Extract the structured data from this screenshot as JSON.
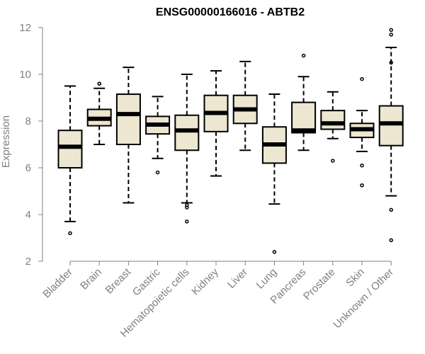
{
  "chart_data": {
    "type": "box",
    "title": "ENSG00000166016 - ABTB2",
    "xlabel": "",
    "ylabel": "Expression",
    "ylim": [
      2,
      12
    ],
    "yticks": [
      2,
      4,
      6,
      8,
      10,
      12
    ],
    "grid": false,
    "legend": "none",
    "colors": {
      "box_fill": "#ede6d0",
      "box_stroke": "#000000",
      "axis": "#808080"
    },
    "categories": [
      "Bladder",
      "Brain",
      "Breast",
      "Gastric",
      "Hematopoietic cells",
      "Kidney",
      "Liver",
      "Lung",
      "Pancreas",
      "Prostate",
      "Skin",
      "Unknown / Other"
    ],
    "boxes": [
      {
        "category": "Bladder",
        "whisker_low": 3.7,
        "q1": 6.0,
        "median": 6.9,
        "q3": 7.6,
        "whisker_high": 9.5,
        "outliers": [
          3.2
        ]
      },
      {
        "category": "Brain",
        "whisker_low": 7.0,
        "q1": 7.8,
        "median": 8.1,
        "q3": 8.5,
        "whisker_high": 9.4,
        "outliers": [
          9.6,
          9.6
        ]
      },
      {
        "category": "Breast",
        "whisker_low": 4.5,
        "q1": 7.0,
        "median": 8.3,
        "q3": 9.15,
        "whisker_high": 10.3,
        "outliers": []
      },
      {
        "category": "Gastric",
        "whisker_low": 6.4,
        "q1": 7.45,
        "median": 7.85,
        "q3": 8.2,
        "whisker_high": 9.05,
        "outliers": [
          5.8
        ]
      },
      {
        "category": "Hematopoietic cells",
        "whisker_low": 4.5,
        "q1": 6.75,
        "median": 7.6,
        "q3": 8.25,
        "whisker_high": 10.0,
        "outliers": [
          4.4,
          4.3,
          3.7
        ]
      },
      {
        "category": "Kidney",
        "whisker_low": 5.65,
        "q1": 7.55,
        "median": 8.35,
        "q3": 9.1,
        "whisker_high": 10.15,
        "outliers": []
      },
      {
        "category": "Liver",
        "whisker_low": 6.75,
        "q1": 7.9,
        "median": 8.5,
        "q3": 9.1,
        "whisker_high": 10.55,
        "outliers": []
      },
      {
        "category": "Lung",
        "whisker_low": 4.45,
        "q1": 6.2,
        "median": 7.0,
        "q3": 7.75,
        "whisker_high": 9.15,
        "outliers": [
          2.4
        ]
      },
      {
        "category": "Pancreas",
        "whisker_low": 6.75,
        "q1": 7.5,
        "median": 7.6,
        "q3": 8.8,
        "whisker_high": 9.9,
        "outliers": [
          10.8
        ]
      },
      {
        "category": "Prostate",
        "whisker_low": 7.25,
        "q1": 7.65,
        "median": 7.9,
        "q3": 8.45,
        "whisker_high": 9.25,
        "outliers": [
          6.3
        ]
      },
      {
        "category": "Skin",
        "whisker_low": 6.7,
        "q1": 7.3,
        "median": 7.65,
        "q3": 7.9,
        "whisker_high": 8.45,
        "outliers": [
          9.8,
          6.1,
          5.25
        ]
      },
      {
        "category": "Unknown / Other",
        "whisker_low": 4.8,
        "q1": 6.95,
        "median": 7.9,
        "q3": 8.65,
        "whisker_high": 11.15,
        "outliers": [
          11.9,
          11.7,
          10.5,
          4.2,
          2.9
        ]
      }
    ]
  }
}
